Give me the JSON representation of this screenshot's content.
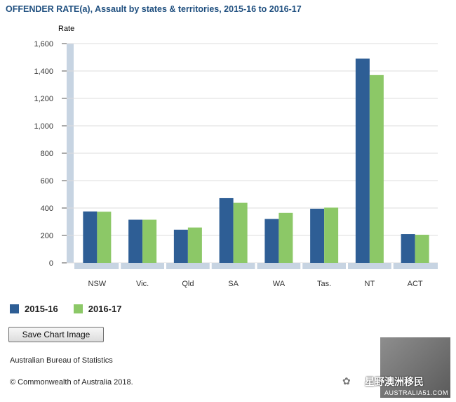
{
  "chart_data": {
    "type": "bar",
    "title": "OFFENDER RATE(a), Assault by states & territories, 2015-16 to 2016-17",
    "ylabel": "Rate",
    "xlabel": "",
    "ylim": [
      0,
      1600
    ],
    "yticks": [
      0,
      200,
      400,
      600,
      800,
      1000,
      1200,
      1400,
      1600
    ],
    "ytick_labels": [
      "0",
      "200",
      "400",
      "600",
      "800",
      "1,000",
      "1,200",
      "1,400",
      "1,600"
    ],
    "categories": [
      "NSW",
      "Vic.",
      "Qld",
      "SA",
      "WA",
      "Tas.",
      "NT",
      "ACT"
    ],
    "series": [
      {
        "name": "2015-16",
        "color": "#2e5e95",
        "values": [
          375,
          315,
          242,
          472,
          320,
          395,
          1490,
          210
        ]
      },
      {
        "name": "2016-17",
        "color": "#8cc867",
        "values": [
          373,
          315,
          258,
          438,
          365,
          403,
          1370,
          205
        ]
      }
    ],
    "grid": true,
    "legend_position": "bottom-left"
  },
  "buttons": {
    "save_chart": "Save Chart Image"
  },
  "footer": {
    "source": "Australian Bureau of Statistics",
    "copyright": "© Commonwealth of Australia 2018."
  },
  "watermark": {
    "text": "星野澳洲移民",
    "site": "AUSTRALIA51.COM"
  }
}
